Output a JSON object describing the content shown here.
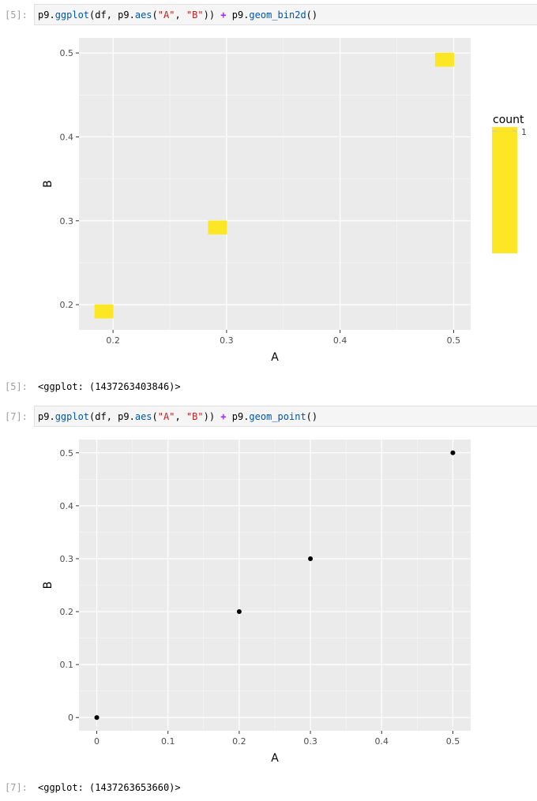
{
  "cells": [
    {
      "prompt": "[5]:",
      "code_tokens": [
        {
          "t": "p9.",
          "c": ""
        },
        {
          "t": "ggplot",
          "c": "fn"
        },
        {
          "t": "(df, p9.",
          "c": ""
        },
        {
          "t": "aes",
          "c": "fn"
        },
        {
          "t": "(",
          "c": ""
        },
        {
          "t": "\"A\"",
          "c": "str"
        },
        {
          "t": ", ",
          "c": ""
        },
        {
          "t": "\"B\"",
          "c": "str"
        },
        {
          "t": ")) ",
          "c": ""
        },
        {
          "t": "+",
          "c": "op"
        },
        {
          "t": " p9.",
          "c": ""
        },
        {
          "t": "geom_bin2d",
          "c": "fn"
        },
        {
          "t": "()",
          "c": ""
        }
      ],
      "output_prompt": "[5]:",
      "output_text": "<ggplot: (1437263403846)>"
    },
    {
      "prompt": "[7]:",
      "code_tokens": [
        {
          "t": "p9.",
          "c": ""
        },
        {
          "t": "ggplot",
          "c": "fn"
        },
        {
          "t": "(df, p9.",
          "c": ""
        },
        {
          "t": "aes",
          "c": "fn"
        },
        {
          "t": "(",
          "c": ""
        },
        {
          "t": "\"A\"",
          "c": "str"
        },
        {
          "t": ", ",
          "c": ""
        },
        {
          "t": "\"B\"",
          "c": "str"
        },
        {
          "t": ")) ",
          "c": ""
        },
        {
          "t": "+",
          "c": "op"
        },
        {
          "t": " p9.",
          "c": ""
        },
        {
          "t": "geom_point",
          "c": "fn"
        },
        {
          "t": "()",
          "c": ""
        }
      ],
      "output_prompt": "[7]:",
      "output_text": "<ggplot: (1437263653660)>"
    }
  ],
  "chart_data": [
    {
      "type": "heatmap",
      "xlabel": "A",
      "ylabel": "B",
      "xlim": [
        0.17,
        0.515
      ],
      "ylim": [
        0.17,
        0.518
      ],
      "x_ticks": [
        0.2,
        0.3,
        0.4,
        0.5
      ],
      "x_tick_labels": [
        "0.2",
        "0.3",
        "0.4",
        "0.5"
      ],
      "y_ticks": [
        0.2,
        0.3,
        0.4,
        0.5
      ],
      "y_tick_labels": [
        "0.2",
        "0.3",
        "0.4",
        "0.5"
      ],
      "bin_width": 0.0167,
      "bin_height": 0.0167,
      "bins": [
        {
          "x": 0.192,
          "y": 0.192,
          "count": 1
        },
        {
          "x": 0.292,
          "y": 0.292,
          "count": 1
        },
        {
          "x": 0.492,
          "y": 0.492,
          "count": 1
        }
      ],
      "fill_color": "#fde725",
      "legend": {
        "title": "count",
        "labels": [
          "1"
        ],
        "placement": "right"
      },
      "grid": true,
      "panel_bg": "#ebebeb"
    },
    {
      "type": "scatter",
      "xlabel": "A",
      "ylabel": "B",
      "xlim": [
        -0.025,
        0.525
      ],
      "ylim": [
        -0.025,
        0.525
      ],
      "x_ticks": [
        0,
        0.1,
        0.2,
        0.3,
        0.4,
        0.5
      ],
      "x_tick_labels": [
        "0",
        "0.1",
        "0.2",
        "0.3",
        "0.4",
        "0.5"
      ],
      "y_ticks": [
        0,
        0.1,
        0.2,
        0.3,
        0.4,
        0.5
      ],
      "y_tick_labels": [
        "0",
        "0.1",
        "0.2",
        "0.3",
        "0.4",
        "0.5"
      ],
      "points": [
        {
          "x": 0,
          "y": 0
        },
        {
          "x": 0.2,
          "y": 0.2
        },
        {
          "x": 0.3,
          "y": 0.3
        },
        {
          "x": 0.5,
          "y": 0.5
        }
      ],
      "point_color": "#000000",
      "grid": true,
      "panel_bg": "#ebebeb"
    }
  ]
}
